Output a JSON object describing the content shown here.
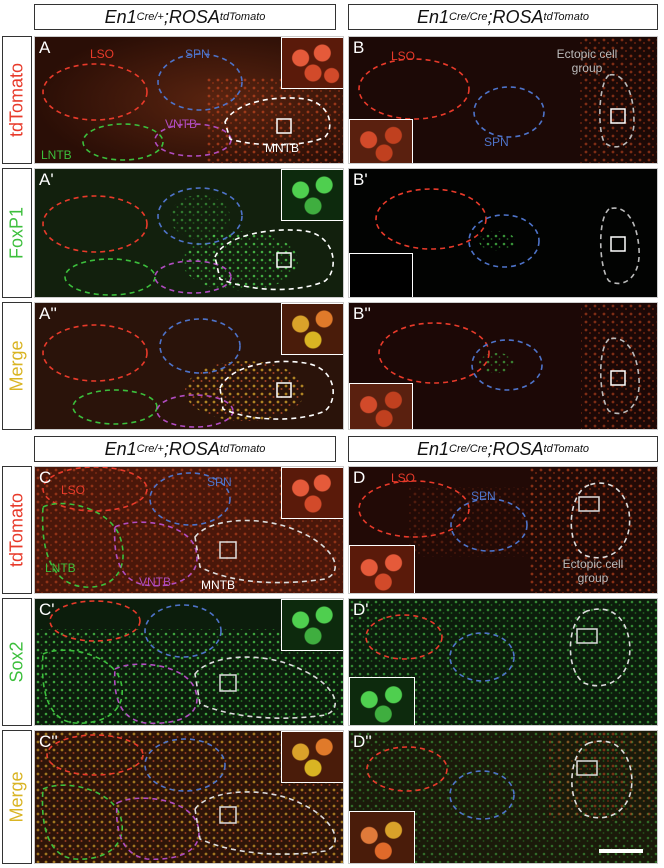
{
  "headers": {
    "left_top": {
      "gene": "En1",
      "sup": "Cre/+",
      "sep": "; ",
      "reporter": "ROSA",
      "rsup": "tdTomato"
    },
    "right_top": {
      "gene": "En1",
      "sup": "Cre/Cre",
      "sep": "; ",
      "reporter": "ROSA",
      "rsup": "tdTomato"
    },
    "left_bottom": {
      "gene": "En1",
      "sup": "Cre/+",
      "sep": "; ",
      "reporter": "ROSA",
      "rsup": "tdTomato"
    },
    "right_bottom": {
      "gene": "En1",
      "sup": "Cre/Cre",
      "sep": "; ",
      "reporter": "ROSA",
      "rsup": "tdTomato"
    }
  },
  "row_labels": {
    "r1": "tdTomato",
    "r2": "FoxP1",
    "r3": "Merge",
    "r4": "tdTomato",
    "r5": "Sox2",
    "r6": "Merge"
  },
  "colors": {
    "red": "#e83a2a",
    "green": "#3cbf3c",
    "yellow": "#d9b423",
    "blue": "#4e73c9",
    "magenta": "#b04cc0",
    "gray": "#bbbbbb"
  },
  "panel_labels": {
    "A": "A",
    "A1": "A'",
    "A2": "A''",
    "B": "B",
    "B1": "B'",
    "B2": "B''",
    "C": "C",
    "C1": "C'",
    "C2": "C''",
    "D": "D",
    "D1": "D'",
    "D2": "D''"
  },
  "region_labels": {
    "lso": "LSO",
    "spn": "SPN",
    "vntb": "VNTB",
    "lntb": "LNTB",
    "mntb": "MNTB",
    "ectopic": "Ectopic cell group"
  }
}
